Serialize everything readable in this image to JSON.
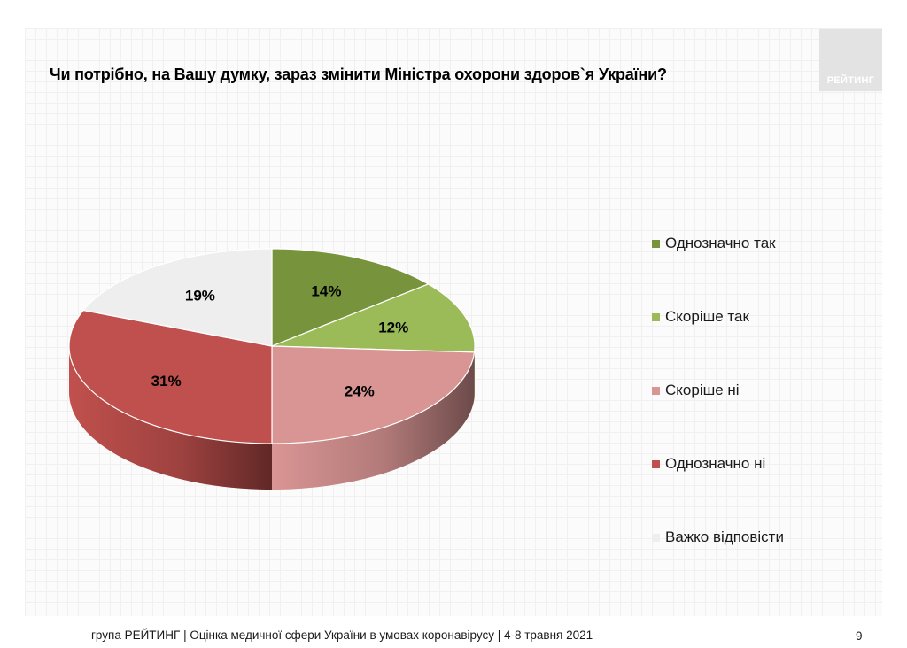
{
  "logo": {
    "text": "РЕЙТИНГ"
  },
  "footer": {
    "text": "група РЕЙТИНГ  |  Оцінка медичної сфери України в умовах коронавірусу  | 4-8 травня 2021",
    "page_number": "9"
  },
  "chart_data": {
    "type": "pie",
    "title": "Чи потрібно, на Вашу думку, зараз змінити Міністра охорони здоров`я України?",
    "labels": [
      "Однозначно так",
      "Скоріше так",
      "Скоріше ні",
      "Однозначно ні",
      "Важко відповісти"
    ],
    "values": [
      14,
      12,
      24,
      31,
      19
    ],
    "value_labels": [
      "14%",
      "12%",
      "24%",
      "31%",
      "19%"
    ],
    "colors": [
      "#77933c",
      "#9bbb59",
      "#d99594",
      "#c0504d",
      "#eeeeee"
    ],
    "unit": "%",
    "legend_position": "right"
  }
}
